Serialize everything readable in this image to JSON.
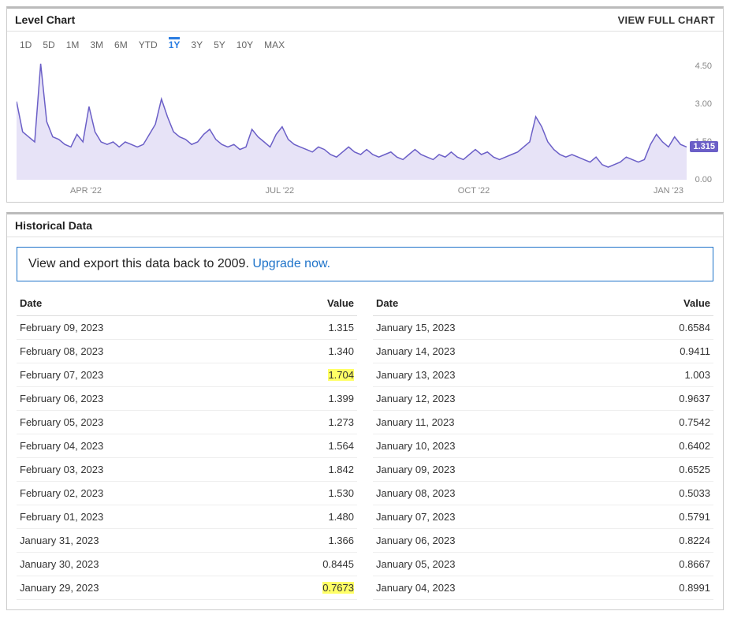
{
  "chart_panel": {
    "title": "Level Chart",
    "view_full": "VIEW FULL CHART",
    "ranges": [
      "1D",
      "5D",
      "1M",
      "3M",
      "6M",
      "YTD",
      "1Y",
      "3Y",
      "5Y",
      "10Y",
      "MAX"
    ],
    "active_range": "1Y",
    "chart": {
      "type": "area",
      "line_color": "#6b5fc7",
      "fill_color": "#d7d0f2",
      "fill_opacity": 0.6,
      "background_color": "#ffffff",
      "line_width": 1.5,
      "ylim": [
        0.0,
        5.0
      ],
      "y_ticks": [
        "0.00",
        "1.50",
        "3.00",
        "4.50"
      ],
      "current_value": "1.315",
      "current_value_bg": "#6b5fc7",
      "x_labels": [
        "APR '22",
        "JUL '22",
        "OCT '22",
        "JAN '23"
      ],
      "values": [
        3.1,
        1.9,
        1.7,
        1.5,
        4.6,
        2.3,
        1.7,
        1.6,
        1.4,
        1.3,
        1.8,
        1.5,
        2.9,
        1.9,
        1.5,
        1.4,
        1.5,
        1.3,
        1.5,
        1.4,
        1.3,
        1.4,
        1.8,
        2.2,
        3.2,
        2.5,
        1.9,
        1.7,
        1.6,
        1.4,
        1.5,
        1.8,
        2.0,
        1.6,
        1.4,
        1.3,
        1.4,
        1.2,
        1.3,
        2.0,
        1.7,
        1.5,
        1.3,
        1.8,
        2.1,
        1.6,
        1.4,
        1.3,
        1.2,
        1.1,
        1.3,
        1.2,
        1.0,
        0.9,
        1.1,
        1.3,
        1.1,
        1.0,
        1.2,
        1.0,
        0.9,
        1.0,
        1.1,
        0.9,
        0.8,
        1.0,
        1.2,
        1.0,
        0.9,
        0.8,
        1.0,
        0.9,
        1.1,
        0.9,
        0.8,
        1.0,
        1.2,
        1.0,
        1.1,
        0.9,
        0.8,
        0.9,
        1.0,
        1.1,
        1.3,
        1.5,
        2.5,
        2.1,
        1.5,
        1.2,
        1.0,
        0.9,
        1.0,
        0.9,
        0.8,
        0.7,
        0.9,
        0.6,
        0.5,
        0.6,
        0.7,
        0.9,
        0.8,
        0.7,
        0.8,
        1.4,
        1.8,
        1.5,
        1.3,
        1.7,
        1.4,
        1.3
      ]
    }
  },
  "data_panel": {
    "title": "Historical Data",
    "upgrade_text": "View and export this data back to 2009. ",
    "upgrade_link": "Upgrade now.",
    "columns": {
      "date": "Date",
      "value": "Value"
    },
    "left_rows": [
      {
        "date": "February 09, 2023",
        "value": "1.315",
        "hl": false
      },
      {
        "date": "February 08, 2023",
        "value": "1.340",
        "hl": false
      },
      {
        "date": "February 07, 2023",
        "value": "1.704",
        "hl": true
      },
      {
        "date": "February 06, 2023",
        "value": "1.399",
        "hl": false
      },
      {
        "date": "February 05, 2023",
        "value": "1.273",
        "hl": false
      },
      {
        "date": "February 04, 2023",
        "value": "1.564",
        "hl": false
      },
      {
        "date": "February 03, 2023",
        "value": "1.842",
        "hl": false
      },
      {
        "date": "February 02, 2023",
        "value": "1.530",
        "hl": false
      },
      {
        "date": "February 01, 2023",
        "value": "1.480",
        "hl": false
      },
      {
        "date": "January 31, 2023",
        "value": "1.366",
        "hl": false
      },
      {
        "date": "January 30, 2023",
        "value": "0.8445",
        "hl": false
      },
      {
        "date": "January 29, 2023",
        "value": "0.7673",
        "hl": true
      }
    ],
    "right_rows": [
      {
        "date": "January 15, 2023",
        "value": "0.6584",
        "hl": false
      },
      {
        "date": "January 14, 2023",
        "value": "0.9411",
        "hl": false
      },
      {
        "date": "January 13, 2023",
        "value": "1.003",
        "hl": false
      },
      {
        "date": "January 12, 2023",
        "value": "0.9637",
        "hl": false
      },
      {
        "date": "January 11, 2023",
        "value": "0.7542",
        "hl": false
      },
      {
        "date": "January 10, 2023",
        "value": "0.6402",
        "hl": false
      },
      {
        "date": "January 09, 2023",
        "value": "0.6525",
        "hl": false
      },
      {
        "date": "January 08, 2023",
        "value": "0.5033",
        "hl": false
      },
      {
        "date": "January 07, 2023",
        "value": "0.5791",
        "hl": false
      },
      {
        "date": "January 06, 2023",
        "value": "0.8224",
        "hl": false
      },
      {
        "date": "January 05, 2023",
        "value": "0.8667",
        "hl": false
      },
      {
        "date": "January 04, 2023",
        "value": "0.8991",
        "hl": false
      }
    ]
  }
}
